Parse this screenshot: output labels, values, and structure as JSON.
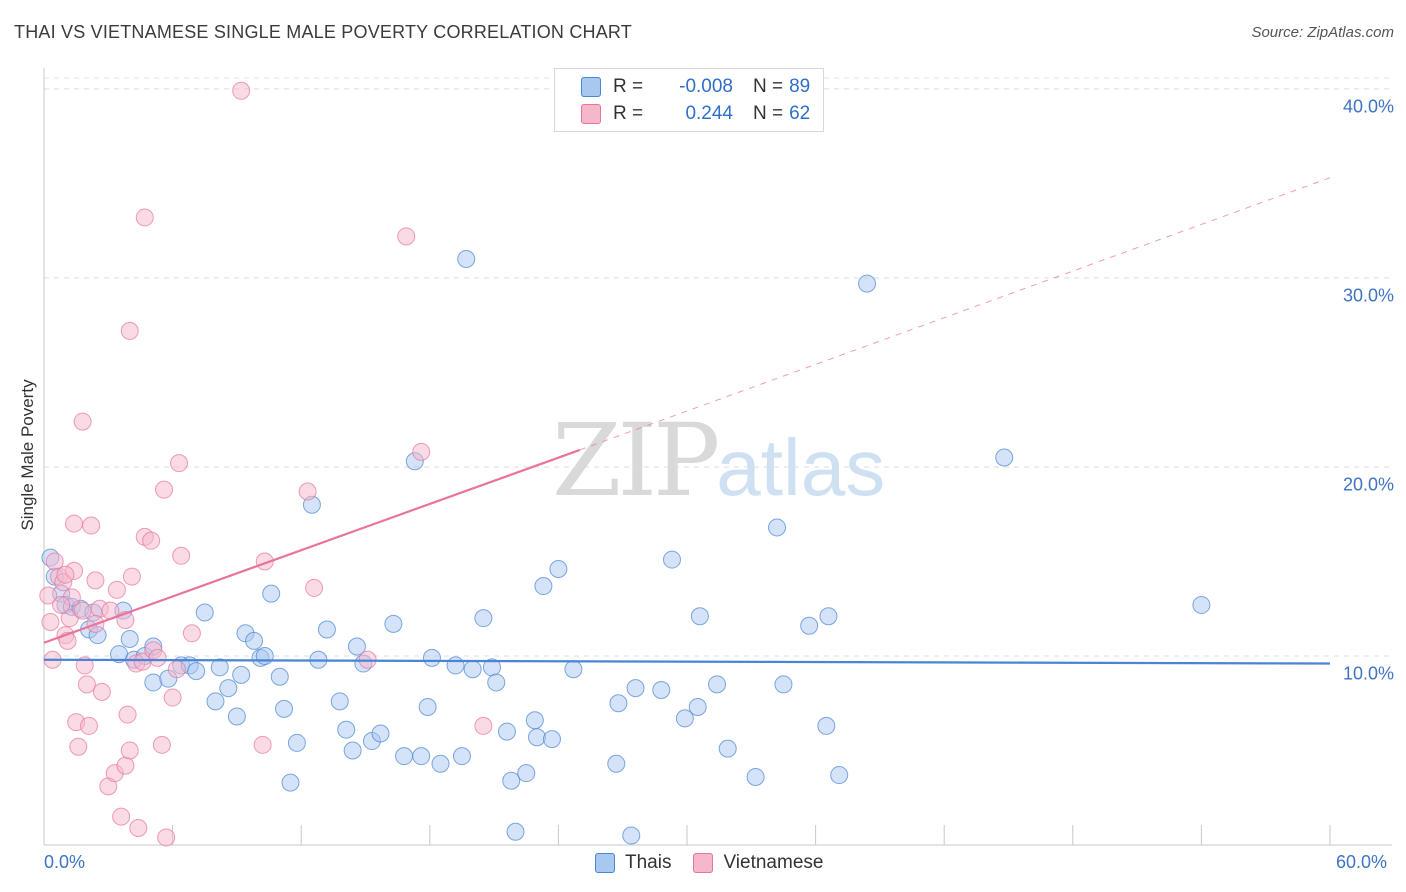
{
  "title": "THAI VS VIETNAMESE SINGLE MALE POVERTY CORRELATION CHART",
  "source": "Source: ZipAtlas.com",
  "watermark": {
    "zip": "ZIP",
    "atlas": "atlas"
  },
  "legend": {
    "rows": [
      {
        "r_label": "R =",
        "r_value": "-0.008",
        "n_label": "N =",
        "n_value": "89",
        "color": "#a9c8f0"
      },
      {
        "r_label": "R =",
        "r_value": "0.244",
        "n_label": "N =",
        "n_value": "62",
        "color": "#f5b8cb"
      }
    ]
  },
  "bottom_legend": [
    {
      "label": "Thais",
      "color": "#a9c8f0"
    },
    {
      "label": "Vietnamese",
      "color": "#f5b8cb"
    }
  ],
  "chart_data": {
    "type": "scatter",
    "title": "THAI VS VIETNAMESE SINGLE MALE POVERTY CORRELATION CHART",
    "xlabel": "",
    "ylabel": "Single Male Poverty",
    "xlim": [
      0,
      60
    ],
    "ylim": [
      0,
      41
    ],
    "x_tick_labels": [
      "0.0%",
      "60.0%"
    ],
    "y_ticks": [
      10,
      20,
      30,
      40
    ],
    "y_tick_labels": [
      "10.0%",
      "20.0%",
      "30.0%",
      "40.0%"
    ],
    "grid": true,
    "series": [
      {
        "name": "Thais",
        "color": "#4a84d4",
        "fill": "#a9c8f0",
        "trend": {
          "x": [
            0,
            60
          ],
          "y": [
            9.8,
            9.6
          ],
          "style": "solid"
        },
        "points": [
          [
            0.3,
            15.2
          ],
          [
            0.5,
            14.2
          ],
          [
            0.8,
            13.3
          ],
          [
            1.0,
            12.7
          ],
          [
            1.3,
            12.6
          ],
          [
            1.7,
            12.5
          ],
          [
            2.3,
            12.3
          ],
          [
            2.1,
            11.4
          ],
          [
            2.5,
            11.1
          ],
          [
            3.7,
            12.4
          ],
          [
            4.0,
            10.9
          ],
          [
            3.5,
            10.1
          ],
          [
            4.2,
            9.8
          ],
          [
            4.7,
            10.0
          ],
          [
            5.1,
            10.5
          ],
          [
            5.1,
            8.6
          ],
          [
            6.4,
            9.5
          ],
          [
            6.8,
            9.5
          ],
          [
            5.8,
            8.8
          ],
          [
            7.1,
            9.2
          ],
          [
            7.5,
            12.3
          ],
          [
            8.0,
            7.6
          ],
          [
            8.2,
            9.4
          ],
          [
            8.6,
            8.3
          ],
          [
            9.0,
            6.8
          ],
          [
            9.2,
            9.0
          ],
          [
            9.4,
            11.2
          ],
          [
            9.8,
            10.8
          ],
          [
            10.1,
            9.9
          ],
          [
            10.3,
            10.0
          ],
          [
            10.6,
            13.3
          ],
          [
            11.0,
            8.9
          ],
          [
            11.2,
            7.2
          ],
          [
            11.5,
            3.3
          ],
          [
            11.8,
            5.4
          ],
          [
            12.5,
            18.0
          ],
          [
            12.8,
            9.8
          ],
          [
            13.2,
            11.4
          ],
          [
            13.8,
            7.6
          ],
          [
            14.1,
            6.1
          ],
          [
            14.4,
            5.0
          ],
          [
            14.6,
            10.5
          ],
          [
            14.9,
            9.6
          ],
          [
            15.3,
            5.5
          ],
          [
            15.7,
            5.9
          ],
          [
            16.3,
            11.7
          ],
          [
            16.8,
            4.7
          ],
          [
            17.3,
            20.3
          ],
          [
            17.6,
            4.7
          ],
          [
            17.9,
            7.3
          ],
          [
            18.1,
            9.9
          ],
          [
            18.5,
            4.3
          ],
          [
            19.2,
            9.5
          ],
          [
            19.5,
            4.7
          ],
          [
            19.7,
            31.0
          ],
          [
            20.0,
            9.3
          ],
          [
            20.5,
            12.0
          ],
          [
            20.9,
            9.4
          ],
          [
            21.1,
            8.6
          ],
          [
            21.6,
            6.0
          ],
          [
            21.8,
            3.4
          ],
          [
            22.0,
            0.7
          ],
          [
            22.5,
            3.8
          ],
          [
            22.9,
            6.6
          ],
          [
            23.0,
            5.7
          ],
          [
            23.3,
            13.7
          ],
          [
            23.7,
            5.6
          ],
          [
            24.0,
            14.6
          ],
          [
            24.7,
            9.3
          ],
          [
            26.7,
            4.3
          ],
          [
            26.8,
            7.5
          ],
          [
            27.4,
            0.5
          ],
          [
            27.6,
            8.3
          ],
          [
            28.8,
            8.2
          ],
          [
            29.3,
            15.1
          ],
          [
            29.9,
            6.7
          ],
          [
            30.5,
            7.3
          ],
          [
            30.6,
            12.1
          ],
          [
            31.4,
            8.5
          ],
          [
            31.9,
            5.1
          ],
          [
            33.2,
            3.6
          ],
          [
            34.2,
            16.8
          ],
          [
            34.5,
            8.5
          ],
          [
            35.7,
            11.6
          ],
          [
            36.5,
            6.3
          ],
          [
            36.6,
            12.1
          ],
          [
            37.1,
            3.7
          ],
          [
            38.4,
            29.7
          ],
          [
            44.8,
            20.5
          ],
          [
            54.0,
            12.7
          ]
        ]
      },
      {
        "name": "Vietnamese",
        "color": "#e8739c",
        "fill": "#f5b8cb",
        "trend": {
          "x": [
            0,
            25
          ],
          "y": [
            10.7,
            20.9
          ],
          "style": "solid",
          "extended": {
            "x": [
              25,
              60
            ],
            "y": [
              20.9,
              35.3
            ]
          },
          "extended_style": "dashed"
        },
        "points": [
          [
            0.2,
            13.2
          ],
          [
            0.3,
            11.8
          ],
          [
            0.4,
            9.8
          ],
          [
            0.5,
            15.0
          ],
          [
            0.7,
            14.2
          ],
          [
            0.9,
            13.9
          ],
          [
            1.0,
            11.1
          ],
          [
            1.1,
            10.8
          ],
          [
            1.2,
            12.0
          ],
          [
            1.3,
            13.1
          ],
          [
            1.4,
            17.0
          ],
          [
            1.4,
            14.5
          ],
          [
            1.5,
            6.5
          ],
          [
            1.6,
            5.2
          ],
          [
            1.8,
            22.4
          ],
          [
            1.8,
            12.4
          ],
          [
            1.9,
            9.5
          ],
          [
            2.0,
            8.5
          ],
          [
            2.1,
            6.3
          ],
          [
            2.2,
            16.9
          ],
          [
            2.4,
            14.0
          ],
          [
            2.6,
            12.5
          ],
          [
            2.7,
            8.1
          ],
          [
            3.0,
            3.1
          ],
          [
            3.1,
            12.4
          ],
          [
            3.3,
            3.8
          ],
          [
            3.4,
            13.5
          ],
          [
            3.6,
            1.5
          ],
          [
            3.8,
            4.2
          ],
          [
            3.9,
            6.9
          ],
          [
            4.0,
            27.2
          ],
          [
            4.0,
            5.0
          ],
          [
            4.1,
            14.2
          ],
          [
            4.3,
            9.6
          ],
          [
            4.4,
            0.9
          ],
          [
            4.6,
            9.7
          ],
          [
            4.7,
            16.3
          ],
          [
            4.7,
            33.2
          ],
          [
            5.0,
            16.1
          ],
          [
            5.1,
            10.3
          ],
          [
            5.3,
            9.9
          ],
          [
            5.5,
            5.3
          ],
          [
            5.6,
            18.8
          ],
          [
            5.7,
            0.4
          ],
          [
            6.0,
            7.8
          ],
          [
            6.2,
            9.3
          ],
          [
            6.3,
            20.2
          ],
          [
            6.4,
            15.3
          ],
          [
            6.9,
            11.2
          ],
          [
            9.2,
            39.9
          ],
          [
            10.2,
            5.3
          ],
          [
            10.3,
            15.0
          ],
          [
            12.3,
            18.7
          ],
          [
            12.6,
            13.6
          ],
          [
            15.1,
            9.8
          ],
          [
            16.9,
            32.2
          ],
          [
            17.6,
            20.8
          ],
          [
            20.5,
            6.3
          ],
          [
            1.0,
            14.3
          ],
          [
            0.8,
            12.7
          ],
          [
            2.4,
            11.7
          ],
          [
            3.8,
            11.9
          ]
        ]
      }
    ]
  }
}
